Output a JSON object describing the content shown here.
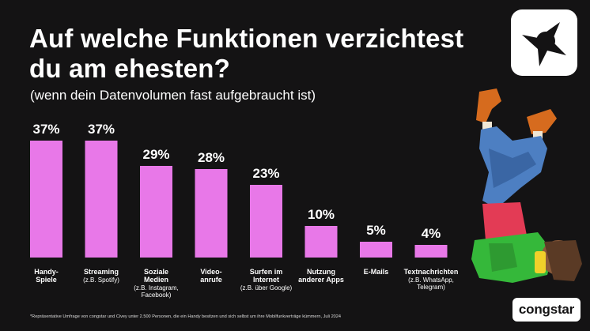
{
  "title": "Auf welche Funktionen verzichtest du am ehesten?",
  "subtitle": "(wenn dein Datenvolumen fast aufgebraucht ist)",
  "footnote": "*Repräsentative Umfrage von congstar und Civey unter 2.500 Personen, die ein Handy besitzen und sich selbst um ihre Mobilfunkverträge kümmern, Juli 2024",
  "brand": "congstar",
  "colors": {
    "background": "#141314",
    "bar": "#e878e8",
    "text": "#ffffff"
  },
  "chart_data": {
    "type": "bar",
    "title": "Auf welche Funktionen verzichtest du am ehesten?",
    "subtitle": "(wenn dein Datenvolumen fast aufgebraucht ist)",
    "unit": "%",
    "ylim": [
      0,
      40
    ],
    "grid": false,
    "categories": [
      {
        "lines": [
          "Handy-",
          "Spiele"
        ],
        "note": []
      },
      {
        "lines": [
          "Streaming"
        ],
        "note": [
          "(z.B. Spotify)"
        ]
      },
      {
        "lines": [
          "Soziale",
          "Medien"
        ],
        "note": [
          "(z.B. Instagram,",
          "Facebook)"
        ]
      },
      {
        "lines": [
          "Video-",
          "anrufe"
        ],
        "note": []
      },
      {
        "lines": [
          "Surfen im",
          "Internet"
        ],
        "note": [
          "(z.B. über Google)"
        ]
      },
      {
        "lines": [
          "Nutzung",
          "anderer Apps"
        ],
        "note": []
      },
      {
        "lines": [
          "E-Mails"
        ],
        "note": []
      },
      {
        "lines": [
          "Textnachrichten"
        ],
        "note": [
          "(z.B. WhatsApp,",
          "Telegram)"
        ]
      }
    ],
    "values": [
      37,
      37,
      29,
      28,
      23,
      10,
      5,
      4
    ],
    "value_labels": [
      "37%",
      "37%",
      "29%",
      "28%",
      "23%",
      "10%",
      "5%",
      "4%"
    ]
  }
}
